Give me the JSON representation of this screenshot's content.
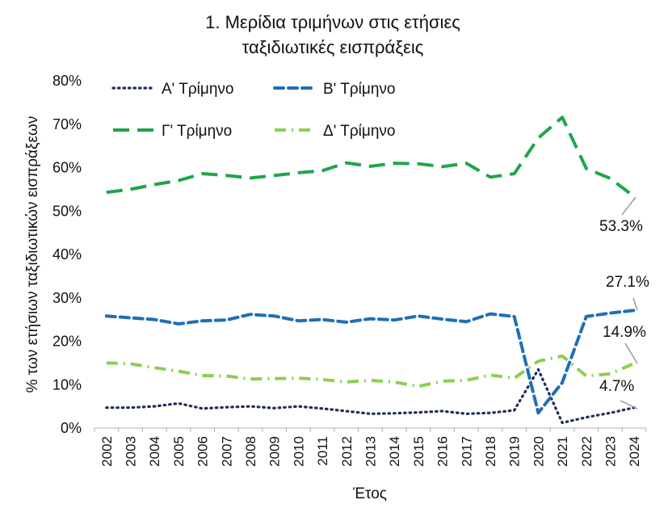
{
  "chart_data": {
    "type": "line",
    "title_lines": [
      "1. Μερίδια τριμήνων στις ετήσιες",
      "ταξιδιωτικές εισπράξεις"
    ],
    "xlabel": "Έτος",
    "ylabel": "% των ετήσιων ταξιδιωτικών εισπράξεων",
    "ylim": [
      0,
      80
    ],
    "yticks": [
      "0%",
      "10%",
      "20%",
      "30%",
      "40%",
      "50%",
      "60%",
      "70%",
      "80%"
    ],
    "grid": false,
    "legend_position": "top",
    "categories": [
      "2002",
      "2003",
      "2004",
      "2005",
      "2006",
      "2007",
      "2008",
      "2009",
      "2010",
      "2011",
      "2012",
      "2013",
      "2014",
      "2015",
      "2016",
      "2017",
      "2018",
      "2019",
      "2020",
      "2021",
      "2022",
      "2023",
      "2024"
    ],
    "series": [
      {
        "name": "Α' Τρίμηνο",
        "color": "#1f2d5c",
        "dash": "dotted",
        "values": [
          4.7,
          4.7,
          5.0,
          5.7,
          4.5,
          4.8,
          5.0,
          4.6,
          5.0,
          4.5,
          3.9,
          3.3,
          3.4,
          3.6,
          3.9,
          3.3,
          3.5,
          4.1,
          13.5,
          1.2,
          2.5,
          3.5,
          4.7
        ]
      },
      {
        "name": "Β' Τρίμηνο",
        "color": "#1f6fb5",
        "dash": "dashed",
        "values": [
          25.8,
          25.4,
          25.0,
          24.0,
          24.7,
          24.9,
          26.2,
          25.8,
          24.7,
          25.0,
          24.4,
          25.2,
          24.9,
          25.8,
          25.1,
          24.5,
          26.3,
          25.7,
          3.5,
          10.5,
          25.7,
          26.5,
          27.1
        ]
      },
      {
        "name": "Γ' Τρίμηνο",
        "color": "#1fa54a",
        "dash": "longdash",
        "values": [
          54.3,
          55.0,
          56.1,
          57.0,
          58.6,
          58.2,
          57.6,
          58.2,
          58.8,
          59.3,
          61.1,
          60.3,
          61.0,
          60.9,
          60.2,
          61.0,
          57.8,
          58.6,
          66.8,
          71.6,
          59.8,
          57.5,
          53.3
        ]
      },
      {
        "name": "Δ' Τρίμηνο",
        "color": "#8ccf4f",
        "dash": "dashdot",
        "values": [
          15.0,
          14.8,
          13.9,
          13.1,
          12.1,
          12.0,
          11.3,
          11.4,
          11.5,
          11.2,
          10.6,
          11.0,
          10.6,
          9.6,
          10.8,
          11.0,
          12.2,
          11.5,
          15.4,
          16.6,
          12.0,
          12.5,
          14.9
        ]
      }
    ],
    "end_labels": [
      "4.7%",
      "27.1%",
      "53.3%",
      "14.9%"
    ]
  }
}
